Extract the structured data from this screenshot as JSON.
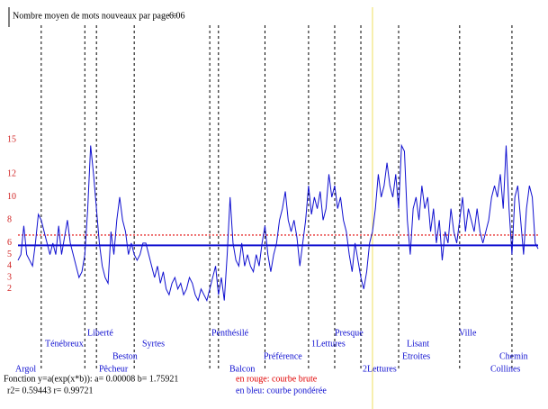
{
  "chart_data": {
    "type": "line",
    "title": "Nombre moyen de mots nouveaux par page =",
    "title_value": "6.06",
    "xlim": [
      0,
      179
    ],
    "ylim": [
      -5,
      26
    ],
    "yticks": [
      15,
      12,
      10,
      8,
      6,
      5,
      4,
      3,
      2
    ],
    "tick_color": "#d02020",
    "series": [
      {
        "name": "courbe pondérée",
        "color": "#1010d0",
        "values": [
          4.5,
          5,
          7.5,
          5,
          4.5,
          4,
          6,
          8.5,
          8,
          7,
          6,
          5,
          6,
          5,
          7.5,
          5,
          6.5,
          8,
          6,
          5,
          4,
          3,
          3.5,
          5,
          9,
          14.5,
          12,
          9,
          6,
          4,
          3,
          2.5,
          7,
          5,
          8,
          10,
          8,
          7,
          5,
          6,
          5,
          4.5,
          5,
          6,
          6,
          5,
          4,
          3,
          4,
          2.5,
          3.5,
          2,
          1.5,
          2.5,
          3,
          2,
          2.5,
          1.5,
          2,
          3,
          2.5,
          1.5,
          1,
          2,
          1.5,
          1,
          2,
          3,
          4,
          1.5,
          3,
          1,
          5,
          10,
          6,
          4.5,
          4,
          6,
          4,
          5,
          4,
          3.5,
          5,
          4,
          6,
          7.5,
          5,
          3.5,
          5,
          6,
          8,
          9,
          10.5,
          8,
          7,
          8,
          6.5,
          4,
          6,
          8,
          11,
          8.5,
          10,
          9,
          10.5,
          8,
          9,
          12,
          10,
          11,
          9,
          10,
          8,
          7,
          5,
          3.5,
          6,
          4.5,
          3,
          2,
          3.5,
          6,
          7,
          9,
          12,
          10,
          11,
          13,
          11,
          10,
          12,
          9,
          14.5,
          14,
          8,
          5,
          9,
          10,
          8,
          11,
          9,
          10,
          7,
          9,
          6,
          8,
          4.5,
          7,
          6,
          9,
          7,
          6,
          8,
          10,
          7,
          9,
          8,
          7,
          9,
          7,
          6,
          7,
          8,
          10,
          11,
          10,
          12,
          9,
          14.5,
          9,
          5,
          10,
          11,
          8,
          5,
          9,
          11,
          10,
          6,
          5.5
        ]
      }
    ],
    "reference_lines": [
      {
        "value": 6.7,
        "color": "#e00000",
        "style": "dotted"
      },
      {
        "value": 5.8,
        "color": "#1010d0",
        "style": "solid"
      }
    ],
    "dividers": [
      8,
      23,
      27,
      40,
      66,
      69,
      85,
      100,
      109,
      118,
      131,
      152,
      170
    ],
    "highlight_x": 122,
    "highlight_color": "#f0e060",
    "section_labels": [
      "Argol",
      "Ténébreux",
      "Liberté",
      "Pêcheur",
      "Beston",
      "Syrtes",
      "Penthésilé",
      "Balcon",
      "Préférence",
      "1Lettures",
      "Presque",
      "2Lettures",
      "Lisant",
      "Etroites",
      "Ville",
      "Chemin",
      "Collines"
    ],
    "footer": {
      "formula": "Fonction y=a(exp(x*b)): a= 0.00008  b= 1.75921",
      "fit": "r2= 0.59443  r= 0.99721",
      "legend_red": "en rouge: courbe brute",
      "legend_blue": "en bleu: courbe pondérée"
    }
  }
}
